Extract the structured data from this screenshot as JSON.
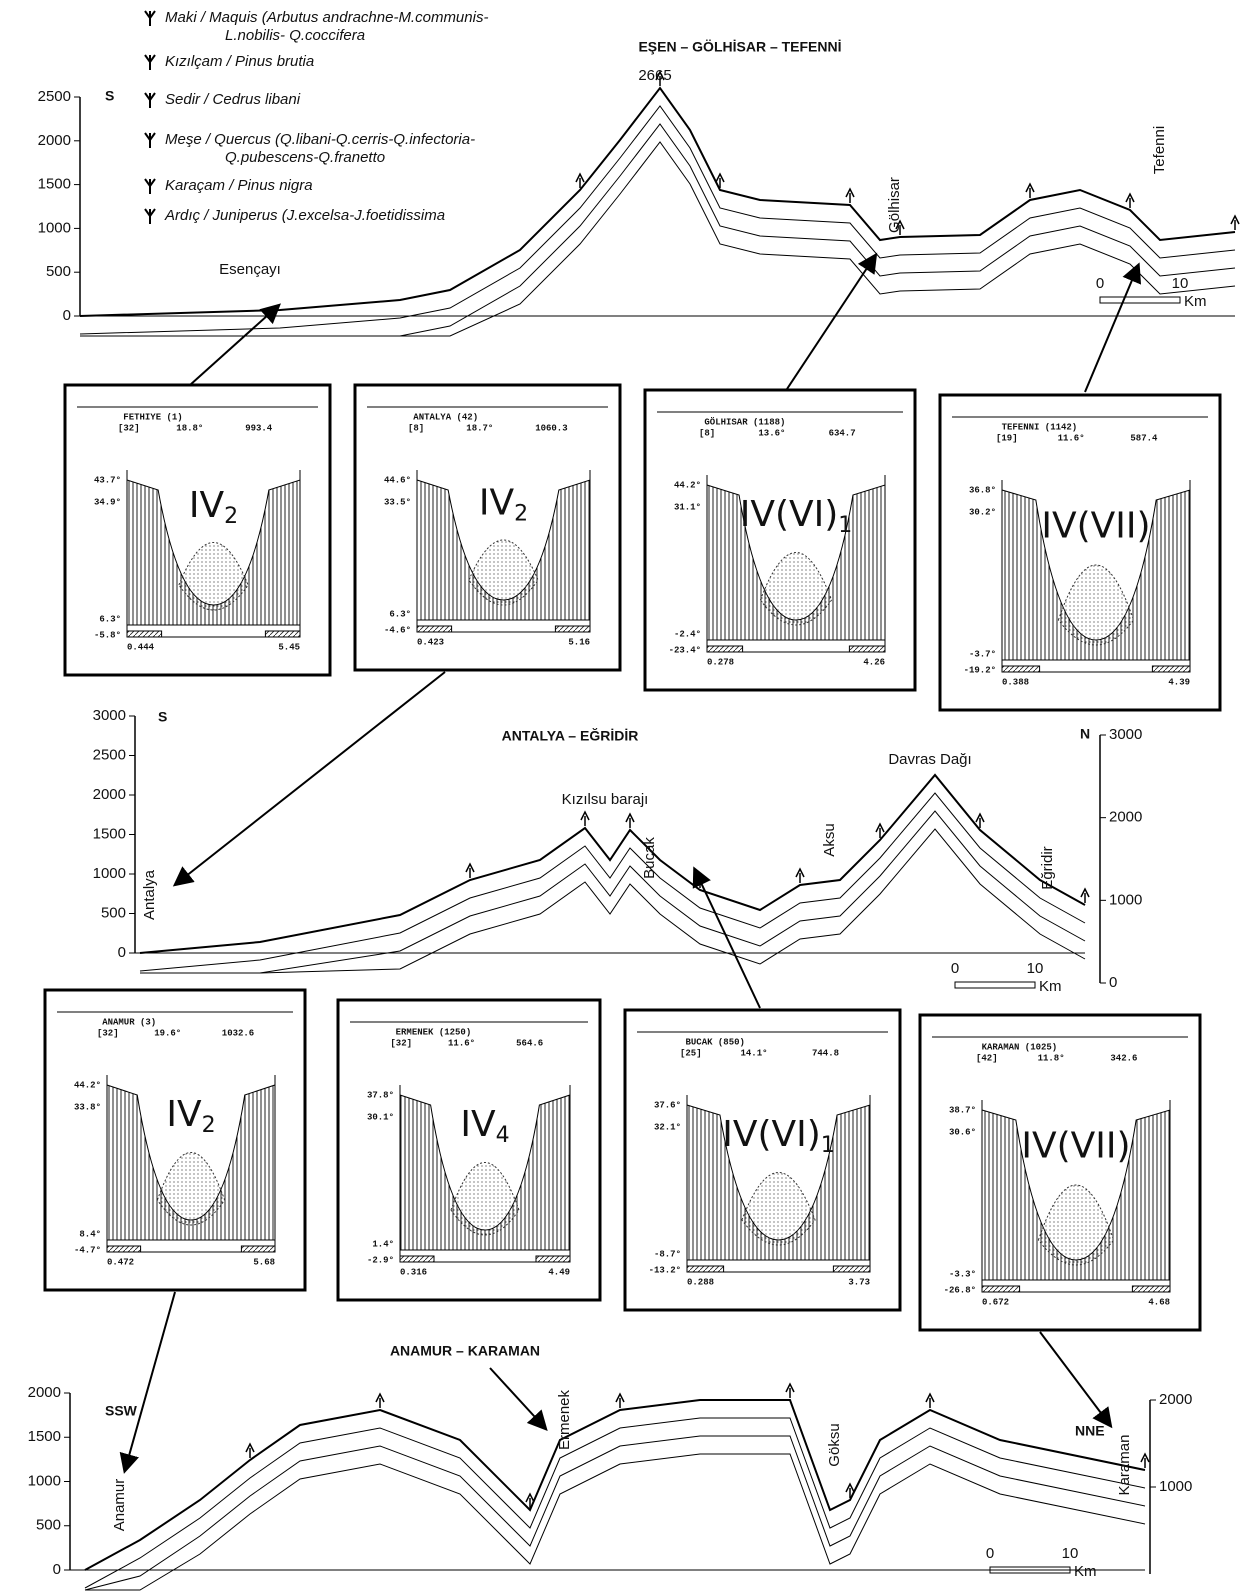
{
  "legend": [
    {
      "lines": [
        "Maki / Maquis (Arbutus  andrachne-M.communis-",
        "L.nobilis- Q.coccifera"
      ]
    },
    {
      "lines": [
        "Kızılçam / Pinus  brutia"
      ]
    },
    {
      "lines": [
        "Sedir / Cedrus  libani"
      ]
    },
    {
      "lines": [
        "Meşe / Quercus (Q.libani-Q.cerris-Q.infectoria-",
        "Q.pubescens-Q.franetto"
      ]
    },
    {
      "lines": [
        "Karaçam / Pinus  nigra"
      ]
    },
    {
      "lines": [
        "Ardıç / Juniperus (J.excelsa-J.foetidissima"
      ]
    }
  ],
  "profiles": [
    {
      "title": "EŞEN – GÖLHİSAR – TEFENNİ",
      "left_label": "S",
      "peak": "2665",
      "yticks": [
        0,
        500,
        1000,
        1500,
        2000,
        2500
      ],
      "places": [
        "Esençayı",
        "Gölhisar",
        "Tefenni"
      ],
      "scale": {
        "start": "0",
        "end": "10",
        "unit": "Km"
      }
    },
    {
      "title": "ANTALYA – EĞRİDİR",
      "left_label": "S",
      "right_label": "N",
      "yticks": [
        0,
        500,
        1000,
        1500,
        2000,
        2500,
        3000
      ],
      "y2ticks": [
        0,
        1000,
        2000,
        3000
      ],
      "places": [
        "Antalya",
        "Kızılsu barajı",
        "Bucak",
        "Aksu",
        "Davras Dağı",
        "Eğridir"
      ],
      "scale": {
        "start": "0",
        "end": "10",
        "unit": "Km"
      }
    },
    {
      "title": "ANAMUR – KARAMAN",
      "left_label": "SSW",
      "right_label": "NNE",
      "yticks": [
        0,
        500,
        1000,
        1500,
        2000
      ],
      "y2ticks": [
        1000,
        2000
      ],
      "places": [
        "Anamur",
        "Ermenek",
        "Göksu",
        "Karaman"
      ],
      "scale": {
        "start": "0",
        "end": "10",
        "unit": "Km"
      }
    }
  ],
  "diagrams": [
    {
      "station": "FETHIYE (1)",
      "years": "[32]",
      "temp": "18.8°",
      "precip": "993.4",
      "labels": [
        "43.7°",
        "34.9°",
        "6.3°",
        "-5.8°"
      ],
      "bottom": [
        "0.444",
        "5.45"
      ],
      "type": {
        "main": "IV",
        "sub": "2"
      }
    },
    {
      "station": "ANTALYA (42)",
      "years": "[8]",
      "temp": "18.7°",
      "precip": "1060.3",
      "labels": [
        "44.6°",
        "33.5°",
        "6.3°",
        "-4.6°"
      ],
      "bottom": [
        "0.423",
        "5.16"
      ],
      "type": {
        "main": "IV",
        "sub": "2"
      }
    },
    {
      "station": "GÖLHISAR (1188)",
      "years": "[8]",
      "temp": "13.6°",
      "precip": "634.7",
      "labels": [
        "44.2°",
        "31.1°",
        "-2.4°",
        "-23.4°"
      ],
      "bottom": [
        "0.278",
        "4.26"
      ],
      "type": {
        "main": "IV(VI)",
        "sub": "1"
      }
    },
    {
      "station": "TEFENNI (1142)",
      "years": "[19]",
      "temp": "11.6°",
      "precip": "587.4",
      "labels": [
        "36.8°",
        "30.2°",
        "-3.7°",
        "-19.2°"
      ],
      "bottom": [
        "0.388",
        "4.39"
      ],
      "type": {
        "main": "IV(VII)"
      }
    },
    {
      "station": "ANAMUR (3)",
      "years": "[32]",
      "temp": "19.6°",
      "precip": "1032.6",
      "labels": [
        "44.2°",
        "33.8°",
        "8.4°",
        "-4.7°"
      ],
      "bottom": [
        "0.472",
        "5.68"
      ],
      "type": {
        "main": "IV",
        "sub": "2"
      }
    },
    {
      "station": "ERMENEK (1250)",
      "years": "[32]",
      "temp": "11.6°",
      "precip": "564.6",
      "labels": [
        "37.8°",
        "30.1°",
        "1.4°",
        "-2.9°"
      ],
      "bottom": [
        "0.316",
        "4.49"
      ],
      "type": {
        "main": "IV",
        "sub": "4"
      }
    },
    {
      "station": "BUCAK (850)",
      "years": "[25]",
      "temp": "14.1°",
      "precip": "744.8",
      "labels": [
        "37.6°",
        "32.1°",
        "-8.7°",
        "-13.2°"
      ],
      "bottom": [
        "0.288",
        "3.73"
      ],
      "type": {
        "main": "IV(VI)",
        "sub": "1"
      }
    },
    {
      "station": "KARAMAN (1025)",
      "years": "[42]",
      "temp": "11.8°",
      "precip": "342.6",
      "labels": [
        "38.7°",
        "30.6°",
        "-3.3°",
        "-26.8°"
      ],
      "bottom": [
        "0.672",
        "4.68"
      ],
      "type": {
        "main": "IV(VII)"
      }
    }
  ]
}
